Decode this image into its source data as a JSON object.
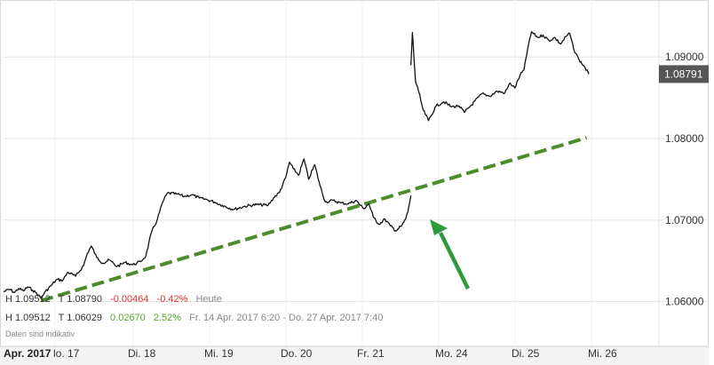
{
  "chart_data": {
    "type": "line",
    "x_ticks": [
      "Apr. 2017",
      "lo. 17",
      "Di. 18",
      "Mi. 19",
      "Do. 20",
      "Fr. 21",
      "Mo. 24",
      "Di. 25",
      "Mi. 26"
    ],
    "y_ticks": [
      "1.06000",
      "1.07000",
      "1.08000",
      "1.09000"
    ],
    "ylim": [
      1.0545,
      1.097
    ],
    "last_value_label": "1.08791",
    "series": [
      {
        "values": [
          [
            0.0,
            1.0612
          ],
          [
            0.1,
            1.0615
          ],
          [
            0.18,
            1.0611
          ],
          [
            0.25,
            1.0616
          ],
          [
            0.33,
            1.0613
          ],
          [
            0.4,
            1.0618
          ],
          [
            0.48,
            1.0614
          ],
          [
            0.55,
            1.061
          ],
          [
            0.62,
            1.0604
          ],
          [
            0.68,
            1.0611
          ],
          [
            0.78,
            1.0619
          ],
          [
            0.88,
            1.0627
          ],
          [
            0.98,
            1.0626
          ],
          [
            1.05,
            1.0636
          ],
          [
            1.15,
            1.0631
          ],
          [
            1.25,
            1.0644
          ],
          [
            1.3,
            1.0659
          ],
          [
            1.35,
            1.0668
          ],
          [
            1.42,
            1.0654
          ],
          [
            1.5,
            1.0647
          ],
          [
            1.58,
            1.0651
          ],
          [
            1.68,
            1.0643
          ],
          [
            1.78,
            1.0648
          ],
          [
            1.88,
            1.0645
          ],
          [
            1.98,
            1.0649
          ],
          [
            2.05,
            1.0656
          ],
          [
            2.12,
            1.0684
          ],
          [
            2.2,
            1.0701
          ],
          [
            2.27,
            1.0722
          ],
          [
            2.33,
            1.0733
          ],
          [
            2.45,
            1.0732
          ],
          [
            2.55,
            1.0729
          ],
          [
            2.65,
            1.0731
          ],
          [
            2.75,
            1.0727
          ],
          [
            2.85,
            1.0725
          ],
          [
            2.95,
            1.0722
          ],
          [
            3.05,
            1.0718
          ],
          [
            3.2,
            1.0713
          ],
          [
            3.35,
            1.0717
          ],
          [
            3.5,
            1.0719
          ],
          [
            3.65,
            1.0718
          ],
          [
            3.72,
            1.0727
          ],
          [
            3.8,
            1.0734
          ],
          [
            3.88,
            1.0752
          ],
          [
            3.93,
            1.0771
          ],
          [
            3.98,
            1.0763
          ],
          [
            4.05,
            1.0755
          ],
          [
            4.12,
            1.0775
          ],
          [
            4.18,
            1.075
          ],
          [
            4.26,
            1.0768
          ],
          [
            4.33,
            1.0742
          ],
          [
            4.4,
            1.0722
          ],
          [
            4.5,
            1.0724
          ],
          [
            4.6,
            1.0721
          ],
          [
            4.7,
            1.072
          ],
          [
            4.8,
            1.0724
          ],
          [
            4.9,
            1.0714
          ],
          [
            4.97,
            1.072
          ],
          [
            5.03,
            1.0703
          ],
          [
            5.1,
            1.0695
          ],
          [
            5.18,
            1.0701
          ],
          [
            5.25,
            1.0693
          ],
          [
            5.32,
            1.0687
          ],
          [
            5.4,
            1.0693
          ],
          [
            5.45,
            1.0701
          ],
          [
            5.48,
            1.071
          ],
          [
            5.52,
            1.073
          ],
          [
            5.52,
            1.089
          ],
          [
            5.54,
            1.093
          ],
          [
            5.58,
            1.087
          ],
          [
            5.62,
            1.0858
          ],
          [
            5.68,
            1.0835
          ],
          [
            5.75,
            1.0822
          ],
          [
            5.85,
            1.084
          ],
          [
            5.95,
            1.0845
          ],
          [
            6.05,
            1.0839
          ],
          [
            6.15,
            1.084
          ],
          [
            6.22,
            1.0832
          ],
          [
            6.3,
            1.084
          ],
          [
            6.45,
            1.0855
          ],
          [
            6.55,
            1.0852
          ],
          [
            6.65,
            1.0858
          ],
          [
            6.75,
            1.0856
          ],
          [
            6.82,
            1.0868
          ],
          [
            6.88,
            1.0862
          ],
          [
            6.95,
            1.0878
          ],
          [
            7.0,
            1.0884
          ],
          [
            7.05,
            1.0911
          ],
          [
            7.1,
            1.0931
          ],
          [
            7.18,
            1.0924
          ],
          [
            7.25,
            1.0927
          ],
          [
            7.33,
            1.092
          ],
          [
            7.4,
            1.0924
          ],
          [
            7.48,
            1.0916
          ],
          [
            7.55,
            1.0925
          ],
          [
            7.6,
            1.0929
          ],
          [
            7.65,
            1.091
          ],
          [
            7.72,
            1.0897
          ],
          [
            7.8,
            1.0887
          ],
          [
            7.85,
            1.0879
          ]
        ]
      }
    ],
    "trendline": {
      "from": [
        0.62,
        1.0601
      ],
      "to": [
        7.82,
        1.0801
      ],
      "color": "#4c8c2b"
    },
    "arrow_color": "#2f9a3c",
    "line_color": "#111111",
    "grid": "horizontal",
    "info_rows": [
      {
        "high": "H 1.09512",
        "low": "T 1.08790",
        "change": "-0.00464",
        "change_pct": "-0.42%",
        "period": "Heute",
        "sign": "neg"
      },
      {
        "high": "H 1.09512",
        "low": "T 1.06029",
        "change": "0.02670",
        "change_pct": "2.52%",
        "period": "Fr. 14 Apr. 2017 6:20 - Do. 27 Apr. 2017 7:40",
        "sign": "pos"
      }
    ],
    "note": "Daten sind indikativ"
  }
}
